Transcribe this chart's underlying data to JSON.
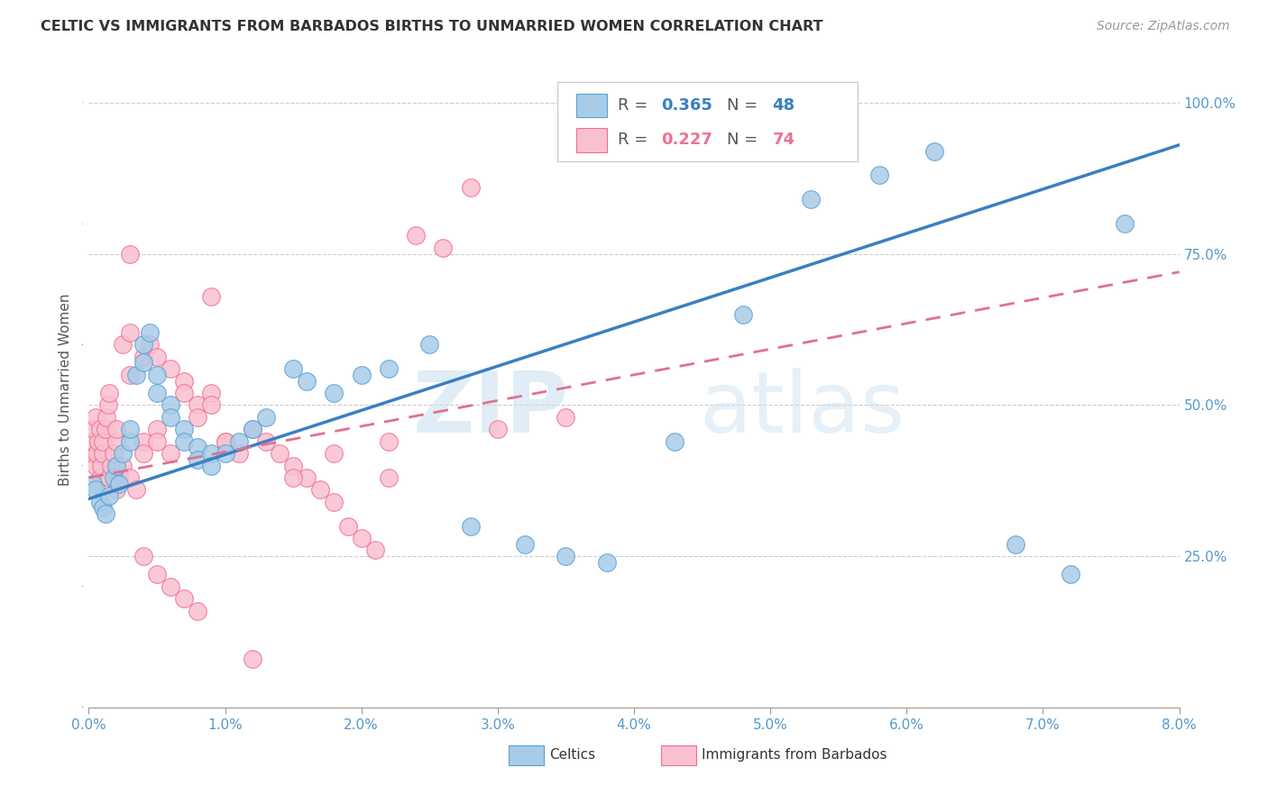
{
  "title": "CELTIC VS IMMIGRANTS FROM BARBADOS BIRTHS TO UNMARRIED WOMEN CORRELATION CHART",
  "source": "Source: ZipAtlas.com",
  "ylabel": "Births to Unmarried Women",
  "watermark_zip": "ZIP",
  "watermark_atlas": "atlas",
  "blue_color": "#a8cce8",
  "blue_edge": "#5a9fd4",
  "pink_color": "#f9c0d0",
  "pink_edge": "#f07090",
  "blue_line_color": "#3a7fc1",
  "pink_line_color": "#e07090",
  "legend_box_color": "#ffffff",
  "legend_border_color": "#cccccc",
  "grid_color": "#cccccc",
  "axis_color": "#999999",
  "tick_label_color": "#5599cc",
  "title_color": "#333333",
  "source_color": "#999999",
  "ylabel_color": "#555555",
  "blue_r": "0.365",
  "blue_n": "48",
  "pink_r": "0.227",
  "pink_n": "74",
  "celtics_label": "Celtics",
  "barbados_label": "Immigrants from Barbados",
  "blue_pts_x": [
    0.0003,
    0.0005,
    0.0008,
    0.001,
    0.0012,
    0.0015,
    0.0018,
    0.002,
    0.0022,
    0.0025,
    0.003,
    0.003,
    0.0035,
    0.004,
    0.004,
    0.0045,
    0.005,
    0.005,
    0.006,
    0.006,
    0.007,
    0.007,
    0.008,
    0.008,
    0.009,
    0.009,
    0.01,
    0.011,
    0.012,
    0.013,
    0.015,
    0.016,
    0.018,
    0.02,
    0.022,
    0.025,
    0.028,
    0.032,
    0.035,
    0.038,
    0.043,
    0.048,
    0.053,
    0.058,
    0.062,
    0.068,
    0.072,
    0.076
  ],
  "blue_pts_y": [
    0.37,
    0.36,
    0.34,
    0.33,
    0.32,
    0.35,
    0.38,
    0.4,
    0.37,
    0.42,
    0.44,
    0.46,
    0.55,
    0.57,
    0.6,
    0.62,
    0.55,
    0.52,
    0.5,
    0.48,
    0.46,
    0.44,
    0.43,
    0.41,
    0.42,
    0.4,
    0.42,
    0.44,
    0.46,
    0.48,
    0.56,
    0.54,
    0.52,
    0.55,
    0.56,
    0.6,
    0.3,
    0.27,
    0.25,
    0.24,
    0.44,
    0.65,
    0.84,
    0.88,
    0.92,
    0.27,
    0.22,
    0.8
  ],
  "pink_pts_x": [
    0.0002,
    0.0003,
    0.0004,
    0.0005,
    0.0005,
    0.0006,
    0.0007,
    0.0008,
    0.0008,
    0.0009,
    0.001,
    0.001,
    0.0012,
    0.0013,
    0.0014,
    0.0015,
    0.0015,
    0.0016,
    0.0018,
    0.002,
    0.002,
    0.002,
    0.0022,
    0.0025,
    0.0025,
    0.003,
    0.003,
    0.003,
    0.0035,
    0.004,
    0.004,
    0.004,
    0.0045,
    0.005,
    0.005,
    0.005,
    0.006,
    0.006,
    0.007,
    0.007,
    0.008,
    0.008,
    0.009,
    0.009,
    0.01,
    0.011,
    0.012,
    0.013,
    0.014,
    0.015,
    0.016,
    0.017,
    0.018,
    0.019,
    0.02,
    0.021,
    0.022,
    0.024,
    0.026,
    0.028,
    0.003,
    0.004,
    0.005,
    0.006,
    0.007,
    0.008,
    0.009,
    0.01,
    0.012,
    0.015,
    0.018,
    0.022,
    0.03,
    0.035
  ],
  "pink_pts_y": [
    0.42,
    0.44,
    0.46,
    0.48,
    0.4,
    0.42,
    0.44,
    0.46,
    0.38,
    0.4,
    0.42,
    0.44,
    0.46,
    0.48,
    0.5,
    0.52,
    0.38,
    0.4,
    0.42,
    0.44,
    0.46,
    0.36,
    0.38,
    0.4,
    0.6,
    0.62,
    0.55,
    0.38,
    0.36,
    0.58,
    0.44,
    0.42,
    0.6,
    0.58,
    0.46,
    0.44,
    0.56,
    0.42,
    0.54,
    0.52,
    0.5,
    0.48,
    0.52,
    0.5,
    0.44,
    0.42,
    0.46,
    0.44,
    0.42,
    0.4,
    0.38,
    0.36,
    0.34,
    0.3,
    0.28,
    0.26,
    0.38,
    0.78,
    0.76,
    0.86,
    0.75,
    0.25,
    0.22,
    0.2,
    0.18,
    0.16,
    0.68,
    0.44,
    0.08,
    0.38,
    0.42,
    0.44,
    0.46,
    0.48
  ],
  "blue_line_x": [
    0.0,
    0.08
  ],
  "blue_line_y": [
    0.345,
    0.93
  ],
  "pink_line_x": [
    0.0,
    0.08
  ],
  "pink_line_y": [
    0.38,
    0.72
  ],
  "xlim": [
    0.0,
    0.08
  ],
  "ylim": [
    0.0,
    1.05
  ],
  "yticks": [
    0.25,
    0.5,
    0.75,
    1.0
  ],
  "ytick_labels": [
    "25.0%",
    "50.0%",
    "75.0%",
    "100.0%"
  ],
  "xticks": [
    0.0,
    0.01,
    0.02,
    0.03,
    0.04,
    0.05,
    0.06,
    0.07,
    0.08
  ],
  "xtick_labels": [
    "0.0%",
    "1.0%",
    "2.0%",
    "3.0%",
    "4.0%",
    "5.0%",
    "6.0%",
    "7.0%",
    "8.0%"
  ]
}
